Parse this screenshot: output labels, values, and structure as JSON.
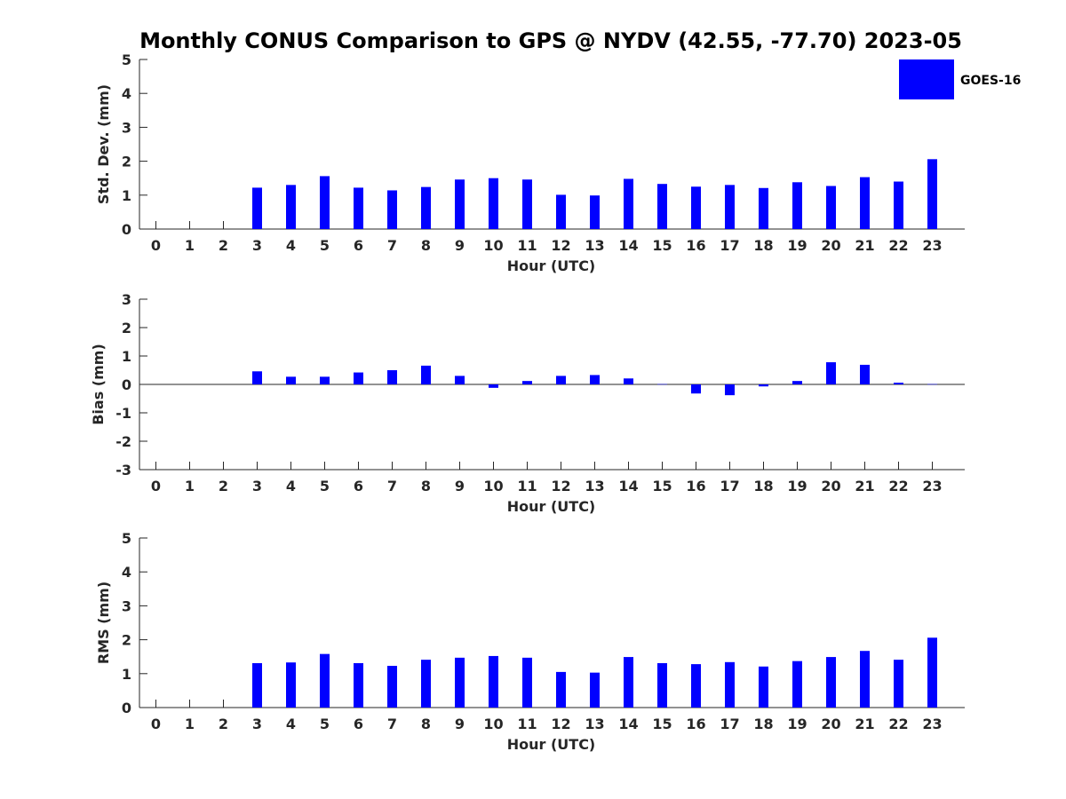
{
  "title": "Monthly CONUS Comparison to GPS @ NYDV (42.55, -77.70) 2023-05",
  "legend": {
    "label": "GOES-16",
    "color": "#0000ff",
    "placement": "top-right"
  },
  "chart_data": [
    {
      "type": "bar",
      "xlabel": "Hour (UTC)",
      "ylabel": "Std. Dev. (mm)",
      "categories": [
        "0",
        "1",
        "2",
        "3",
        "4",
        "5",
        "6",
        "7",
        "8",
        "9",
        "10",
        "11",
        "12",
        "13",
        "14",
        "15",
        "16",
        "17",
        "18",
        "19",
        "20",
        "21",
        "22",
        "23"
      ],
      "series": [
        {
          "name": "GOES-16",
          "values": [
            null,
            null,
            null,
            1.22,
            1.3,
            1.56,
            1.22,
            1.14,
            1.24,
            1.46,
            1.5,
            1.46,
            1.01,
            0.99,
            1.48,
            1.33,
            1.25,
            1.3,
            1.21,
            1.38,
            1.27,
            1.53,
            1.4,
            2.06
          ]
        }
      ],
      "ylim": [
        0,
        5
      ],
      "yticks": [
        "0",
        "1",
        "2",
        "3",
        "4",
        "5"
      ],
      "grid": false
    },
    {
      "type": "bar",
      "xlabel": "Hour (UTC)",
      "ylabel": "Bias (mm)",
      "categories": [
        "0",
        "1",
        "2",
        "3",
        "4",
        "5",
        "6",
        "7",
        "8",
        "9",
        "10",
        "11",
        "12",
        "13",
        "14",
        "15",
        "16",
        "17",
        "18",
        "19",
        "20",
        "21",
        "22",
        "23"
      ],
      "series": [
        {
          "name": "GOES-16",
          "values": [
            null,
            null,
            null,
            0.46,
            0.27,
            0.27,
            0.42,
            0.5,
            0.66,
            0.3,
            -0.12,
            0.12,
            0.3,
            0.33,
            0.21,
            0.01,
            -0.32,
            -0.38,
            -0.07,
            0.12,
            0.78,
            0.69,
            0.06,
            0.01
          ]
        }
      ],
      "ylim": [
        -3,
        3
      ],
      "yticks": [
        "-3",
        "-2",
        "-1",
        "0",
        "1",
        "2",
        "3"
      ],
      "grid": false
    },
    {
      "type": "bar",
      "xlabel": "Hour (UTC)",
      "ylabel": "RMS (mm)",
      "categories": [
        "0",
        "1",
        "2",
        "3",
        "4",
        "5",
        "6",
        "7",
        "8",
        "9",
        "10",
        "11",
        "12",
        "13",
        "14",
        "15",
        "16",
        "17",
        "18",
        "19",
        "20",
        "21",
        "22",
        "23"
      ],
      "series": [
        {
          "name": "GOES-16",
          "values": [
            null,
            null,
            null,
            1.31,
            1.33,
            1.58,
            1.31,
            1.23,
            1.41,
            1.47,
            1.52,
            1.47,
            1.05,
            1.03,
            1.49,
            1.31,
            1.28,
            1.34,
            1.21,
            1.37,
            1.49,
            1.67,
            1.41,
            2.06
          ]
        }
      ],
      "ylim": [
        0,
        5
      ],
      "yticks": [
        "0",
        "1",
        "2",
        "3",
        "4",
        "5"
      ],
      "grid": false
    }
  ]
}
